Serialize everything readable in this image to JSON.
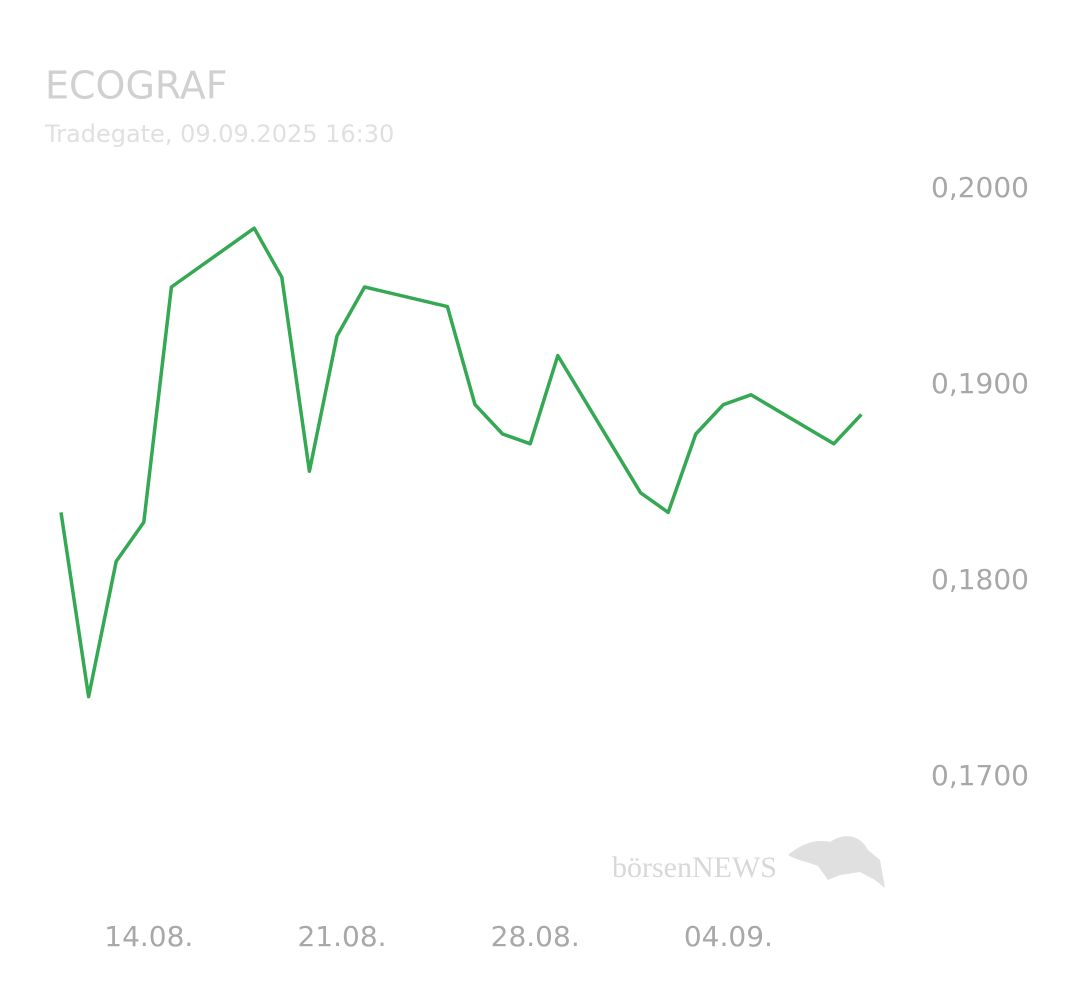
{
  "chart_data": {
    "type": "line",
    "title": "ECOGRAF",
    "subtitle": "Tradegate, 09.09.2025 16:30",
    "watermark": "börsenNEWS",
    "x": [
      "11.08.",
      "12.08.",
      "13.08.",
      "14.08.",
      "15.08.",
      "18.08.",
      "19.08.",
      "20.08.",
      "21.08.",
      "22.08.",
      "25.08.",
      "26.08.",
      "27.08.",
      "28.08.",
      "29.08.",
      "01.09.",
      "02.09.",
      "03.09.",
      "04.09.",
      "05.09.",
      "08.09.",
      "09.09."
    ],
    "series": [
      {
        "name": "ECOGRAF",
        "color": "#34a853",
        "values": [
          0.1835,
          0.1741,
          0.181,
          0.183,
          0.195,
          0.198,
          0.1955,
          0.1856,
          0.1925,
          0.195,
          0.194,
          0.189,
          0.1875,
          0.187,
          0.1915,
          0.1845,
          0.1835,
          0.1875,
          0.189,
          0.1895,
          0.187,
          0.1885
        ]
      }
    ],
    "xticks": [
      "14.08.",
      "21.08.",
      "28.08.",
      "04.09."
    ],
    "ylim": [
      0.17,
      0.2
    ],
    "yticks": [
      {
        "value": 0.2,
        "label": "0,2000"
      },
      {
        "value": 0.19,
        "label": "0,1900"
      },
      {
        "value": 0.18,
        "label": "0,1800"
      },
      {
        "value": 0.17,
        "label": "0,1700"
      }
    ],
    "grid": false
  }
}
